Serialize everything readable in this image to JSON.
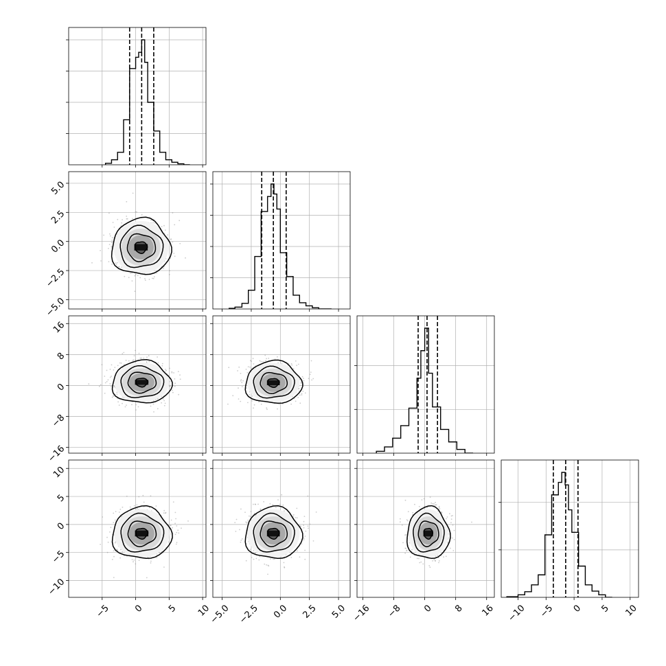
{
  "chart_data": {
    "type": "corner",
    "colors": {
      "line": "#000000",
      "grid": "#b0b0b0",
      "scatter": "#8c8c8c"
    },
    "grid": true,
    "parameters": [
      {
        "index": 0,
        "range": [
          -10,
          10.5
        ],
        "ticks": [
          -5,
          0,
          5,
          10
        ],
        "tick_labels": [
          "−5",
          "0",
          "5",
          "10"
        ],
        "mean": 0.9,
        "std": 2.0,
        "quantiles": [
          -0.9,
          0.9,
          2.7
        ]
      },
      {
        "index": 1,
        "range": [
          -5.8,
          6.0
        ],
        "ticks": [
          -5,
          -2.5,
          0,
          2.5,
          5
        ],
        "tick_labels": [
          "−5.0",
          "−2.5",
          "0.0",
          "2.5",
          "5.0"
        ],
        "mean": -0.6,
        "std": 1.1,
        "quantiles": [
          -1.6,
          -0.6,
          0.5
        ]
      },
      {
        "index": 2,
        "range": [
          -17.5,
          18.0
        ],
        "ticks": [
          -16,
          -8,
          0,
          8,
          16
        ],
        "tick_labels": [
          "−16",
          "−8",
          "0",
          "8",
          "16"
        ],
        "mean": 0.8,
        "std": 2.5,
        "quantiles": [
          -1.7,
          0.6,
          3.3
        ]
      },
      {
        "index": 3,
        "range": [
          -13.0,
          11.5
        ],
        "ticks": [
          -10,
          -5,
          0,
          5,
          10
        ],
        "tick_labels": [
          "−10",
          "−5",
          "0",
          "5",
          "10"
        ],
        "mean": -1.6,
        "std": 2.1,
        "quantiles": [
          -3.7,
          -1.5,
          0.7
        ]
      }
    ],
    "histograms": [
      {
        "param": 0,
        "bin_edges": [
          -4.5,
          -3.6,
          -2.7,
          -1.8,
          -0.9,
          0.0,
          0.45,
          0.9,
          1.35,
          1.8,
          2.7,
          3.6,
          4.5,
          5.4,
          6.3,
          7.2,
          8.1
        ],
        "counts": [
          0.012,
          0.04,
          0.1,
          0.36,
          0.77,
          0.86,
          0.9,
          1.0,
          0.82,
          0.5,
          0.27,
          0.1,
          0.04,
          0.02,
          0.008,
          0.0
        ]
      },
      {
        "param": 1,
        "bin_edges": [
          -4.4,
          -3.9,
          -3.3,
          -2.75,
          -2.2,
          -1.65,
          -1.1,
          -0.8,
          -0.55,
          -0.3,
          0.0,
          0.55,
          1.1,
          1.65,
          2.2,
          2.75,
          3.3,
          3.9,
          4.4
        ],
        "counts": [
          0.005,
          0.015,
          0.045,
          0.15,
          0.42,
          0.78,
          0.9,
          1.0,
          0.92,
          0.8,
          0.45,
          0.26,
          0.11,
          0.05,
          0.025,
          0.01,
          0.0,
          0.0
        ]
      },
      {
        "param": 2,
        "bin_edges": [
          -12.5,
          -10.4,
          -8.3,
          -6.2,
          -4.1,
          -2.0,
          -1.0,
          0.0,
          1.0,
          2.0,
          4.1,
          6.2,
          8.3,
          10.4,
          12.5
        ],
        "counts": [
          0.015,
          0.05,
          0.12,
          0.22,
          0.36,
          0.6,
          0.82,
          1.0,
          0.64,
          0.37,
          0.19,
          0.09,
          0.03,
          0.0
        ]
      },
      {
        "param": 3,
        "bin_edges": [
          -12.0,
          -10.0,
          -8.8,
          -7.6,
          -6.4,
          -5.2,
          -4.0,
          -2.8,
          -2.2,
          -1.6,
          -1.0,
          -0.4,
          0.8,
          2.0,
          3.2,
          4.4,
          5.6,
          6.8
        ],
        "counts": [
          0.005,
          0.02,
          0.045,
          0.1,
          0.18,
          0.5,
          0.82,
          0.92,
          1.0,
          0.9,
          0.7,
          0.52,
          0.25,
          0.1,
          0.05,
          0.02,
          0.0
        ]
      }
    ],
    "panels_2d": [
      {
        "x_param": 0,
        "y_param": 1,
        "center": [
          0.8,
          -0.5
        ]
      },
      {
        "x_param": 0,
        "y_param": 2,
        "center": [
          0.9,
          0.8
        ]
      },
      {
        "x_param": 1,
        "y_param": 2,
        "center": [
          -0.6,
          0.7
        ]
      },
      {
        "x_param": 0,
        "y_param": 3,
        "center": [
          0.9,
          -1.6
        ]
      },
      {
        "x_param": 1,
        "y_param": 3,
        "center": [
          -0.6,
          -1.6
        ]
      },
      {
        "x_param": 2,
        "y_param": 3,
        "center": [
          0.9,
          -1.6
        ]
      }
    ],
    "contour_levels_sigma": [
      0.5,
      1.0,
      1.5,
      2.0
    ]
  }
}
